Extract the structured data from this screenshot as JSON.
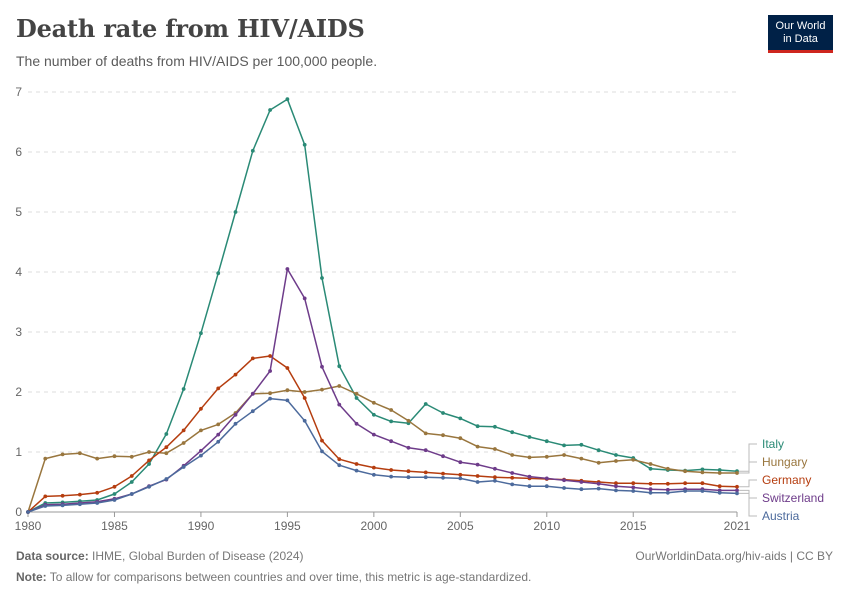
{
  "header": {
    "title": "Death rate from HIV/AIDS",
    "subtitle": "The number of deaths from HIV/AIDS per 100,000 people.",
    "logo_line1": "Our World",
    "logo_line2": "in Data",
    "brand_color": "#002147",
    "brand_accent": "#ce261e"
  },
  "footer": {
    "source_label": "Data source:",
    "source_text": "IHME, Global Burden of Disease (2024)",
    "url_text": "OurWorldinData.org/hiv-aids | CC BY",
    "note_label": "Note:",
    "note_text": "To allow for comparisons between countries and over time, this metric is age-standardized."
  },
  "chart_data": {
    "type": "line",
    "title": "Death rate from HIV/AIDS",
    "subtitle": "The number of deaths from HIV/AIDS per 100,000 people.",
    "xlabel": "",
    "ylabel": "",
    "x": [
      1980,
      1981,
      1982,
      1983,
      1984,
      1985,
      1986,
      1987,
      1988,
      1989,
      1990,
      1991,
      1992,
      1993,
      1994,
      1995,
      1996,
      1997,
      1998,
      1999,
      2000,
      2001,
      2002,
      2003,
      2004,
      2005,
      2006,
      2007,
      2008,
      2009,
      2010,
      2011,
      2012,
      2013,
      2014,
      2015,
      2016,
      2017,
      2018,
      2019,
      2020,
      2021
    ],
    "xlim": [
      1980,
      2021
    ],
    "ylim": [
      0,
      7
    ],
    "x_ticks": [
      "1980",
      "1985",
      "1990",
      "1995",
      "2000",
      "2005",
      "2010",
      "2015",
      "2021"
    ],
    "y_ticks": [
      "0",
      "1",
      "2",
      "3",
      "4",
      "5",
      "6",
      "7"
    ],
    "grid": "horizontal dashed",
    "legend_position": "right (end labels)",
    "series": [
      {
        "name": "Italy",
        "color": "#2a8a76",
        "values": [
          0,
          0.15,
          0.16,
          0.18,
          0.2,
          0.3,
          0.5,
          0.8,
          1.3,
          2.05,
          2.98,
          3.98,
          5.0,
          6.02,
          6.7,
          6.88,
          6.12,
          3.9,
          2.43,
          1.9,
          1.62,
          1.51,
          1.48,
          1.8,
          1.65,
          1.56,
          1.43,
          1.42,
          1.33,
          1.25,
          1.18,
          1.11,
          1.12,
          1.03,
          0.95,
          0.9,
          0.72,
          0.7,
          0.69,
          0.71,
          0.7,
          0.68
        ]
      },
      {
        "name": "Hungary",
        "color": "#99763e",
        "values": [
          0,
          0.89,
          0.96,
          0.98,
          0.89,
          0.93,
          0.92,
          1.0,
          0.98,
          1.15,
          1.36,
          1.46,
          1.65,
          1.97,
          1.98,
          2.03,
          2.0,
          2.04,
          2.1,
          1.97,
          1.82,
          1.7,
          1.52,
          1.31,
          1.28,
          1.23,
          1.09,
          1.05,
          0.95,
          0.91,
          0.92,
          0.95,
          0.89,
          0.82,
          0.85,
          0.87,
          0.8,
          0.72,
          0.68,
          0.66,
          0.65,
          0.65
        ]
      },
      {
        "name": "Germany",
        "color": "#b53d0f",
        "values": [
          0,
          0.26,
          0.27,
          0.29,
          0.32,
          0.42,
          0.6,
          0.86,
          1.08,
          1.36,
          1.72,
          2.06,
          2.29,
          2.56,
          2.6,
          2.4,
          1.9,
          1.19,
          0.88,
          0.8,
          0.74,
          0.7,
          0.68,
          0.66,
          0.64,
          0.62,
          0.6,
          0.58,
          0.57,
          0.56,
          0.55,
          0.54,
          0.52,
          0.5,
          0.48,
          0.48,
          0.47,
          0.47,
          0.48,
          0.48,
          0.43,
          0.42
        ]
      },
      {
        "name": "Switzerland",
        "color": "#6e3c8a",
        "values": [
          0,
          0.12,
          0.13,
          0.15,
          0.17,
          0.22,
          0.3,
          0.43,
          0.54,
          0.77,
          1.02,
          1.29,
          1.62,
          1.97,
          2.35,
          4.05,
          3.56,
          2.42,
          1.79,
          1.47,
          1.29,
          1.18,
          1.07,
          1.03,
          0.93,
          0.83,
          0.79,
          0.72,
          0.65,
          0.59,
          0.56,
          0.53,
          0.5,
          0.47,
          0.43,
          0.41,
          0.38,
          0.37,
          0.38,
          0.38,
          0.36,
          0.36
        ]
      },
      {
        "name": "Austria",
        "color": "#4c6a9c",
        "values": [
          0,
          0.1,
          0.11,
          0.13,
          0.15,
          0.2,
          0.3,
          0.42,
          0.55,
          0.75,
          0.94,
          1.17,
          1.47,
          1.68,
          1.89,
          1.86,
          1.52,
          1.01,
          0.78,
          0.69,
          0.62,
          0.59,
          0.58,
          0.58,
          0.57,
          0.56,
          0.5,
          0.52,
          0.46,
          0.43,
          0.43,
          0.4,
          0.38,
          0.39,
          0.36,
          0.35,
          0.32,
          0.32,
          0.35,
          0.35,
          0.32,
          0.31
        ]
      }
    ]
  }
}
